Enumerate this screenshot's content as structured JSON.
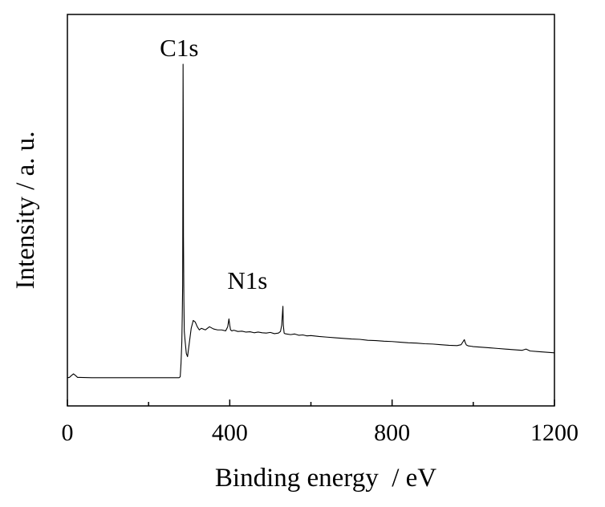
{
  "chart_data": {
    "type": "line",
    "title": "",
    "xlabel": "Binding energy  / eV",
    "ylabel": "Intensity / a. u.",
    "xlim": [
      0,
      1200
    ],
    "ylim": [
      0,
      100
    ],
    "xticks": [
      0,
      400,
      800,
      1200
    ],
    "x_minor_ticks": [
      200,
      600,
      1000
    ],
    "y_tick_labels_shown": false,
    "grid": false,
    "legend": "none",
    "line_color": "#000000",
    "annotations": [
      {
        "text": "C1s",
        "x": 285,
        "y": 100
      },
      {
        "text": "N1s",
        "x": 400,
        "y": 23
      }
    ],
    "series": [
      {
        "x": [
          0,
          5,
          10,
          15,
          20,
          25,
          30,
          60,
          100,
          150,
          200,
          250,
          270,
          275,
          278,
          280,
          282,
          283,
          284,
          284.5,
          285,
          285.5,
          286,
          287,
          288,
          290,
          293,
          296,
          300,
          305,
          310,
          315,
          320,
          325,
          330,
          340,
          350,
          360,
          370,
          380,
          390,
          395,
          398,
          400,
          402,
          405,
          410,
          420,
          430,
          440,
          450,
          460,
          470,
          480,
          490,
          500,
          510,
          520,
          525,
          528,
          530,
          531,
          532,
          534,
          536,
          540,
          550,
          560,
          570,
          580,
          590,
          600,
          620,
          640,
          660,
          680,
          700,
          720,
          740,
          760,
          780,
          800,
          820,
          840,
          860,
          880,
          900,
          920,
          940,
          960,
          970,
          975,
          978,
          980,
          983,
          988,
          995,
          1000,
          1020,
          1040,
          1060,
          1080,
          1100,
          1120,
          1130,
          1140,
          1160,
          1180,
          1200
        ],
        "y": [
          0.3,
          0.4,
          1.0,
          1.5,
          1.0,
          0.4,
          0.4,
          0.3,
          0.3,
          0.3,
          0.3,
          0.3,
          0.3,
          0.3,
          0.6,
          5.0,
          12.0,
          20.0,
          30.0,
          60.0,
          100.0,
          80.0,
          45.0,
          25.0,
          15.0,
          12.0,
          8.0,
          7.0,
          11.0,
          16.0,
          18.5,
          18.0,
          16.5,
          15.5,
          16.0,
          15.5,
          16.5,
          15.8,
          15.5,
          15.5,
          15.2,
          16.5,
          19.0,
          17.0,
          15.5,
          15.2,
          15.4,
          15.0,
          15.1,
          14.8,
          14.9,
          14.6,
          14.8,
          14.6,
          14.5,
          14.7,
          14.3,
          14.5,
          15.0,
          17.0,
          21.0,
          23.0,
          17.0,
          14.5,
          14.3,
          14.2,
          14.0,
          14.2,
          13.8,
          13.9,
          13.6,
          13.7,
          13.4,
          13.2,
          13.0,
          12.8,
          12.6,
          12.5,
          12.2,
          12.1,
          11.9,
          11.8,
          11.6,
          11.4,
          11.3,
          11.1,
          11.0,
          10.8,
          10.6,
          10.5,
          10.8,
          11.8,
          12.4,
          11.5,
          10.7,
          10.4,
          10.3,
          10.2,
          10.0,
          9.8,
          9.6,
          9.4,
          9.2,
          9.0,
          9.4,
          8.8,
          8.6,
          8.4,
          8.2
        ]
      }
    ]
  }
}
